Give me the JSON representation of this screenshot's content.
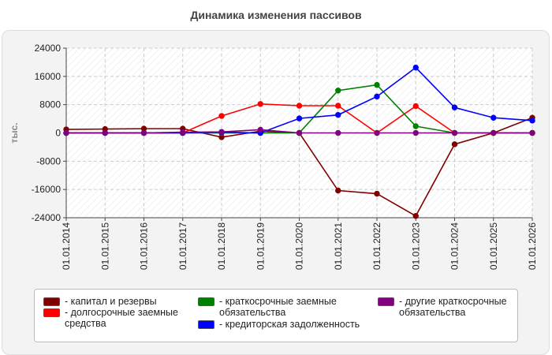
{
  "chart_data": {
    "type": "line",
    "title": "Динамика изменения пассивов",
    "ylabel": "тыс.",
    "xlabel": "",
    "ylim": [
      -24000,
      24000
    ],
    "yticks": [
      24000,
      16000,
      8000,
      0,
      -8000,
      -16000,
      -24000
    ],
    "grid": true,
    "legend_position": "bottom",
    "categories": [
      "01.01.2014",
      "01.01.2015",
      "01.01.2016",
      "01.01.2017",
      "01.01.2018",
      "01.01.2019",
      "01.01.2020",
      "01.01.2021",
      "01.01.2022",
      "01.01.2023",
      "01.01.2024",
      "01.01.2025",
      "01.01.2026"
    ],
    "series": [
      {
        "name": "- капитал и резервы",
        "color": "#800000",
        "values": [
          1000,
          1100,
          1200,
          1200,
          -1200,
          500,
          0,
          -16300,
          -17200,
          -23500,
          -3200,
          0,
          4300
        ]
      },
      {
        "name": "- долгосрочные заемные средства",
        "color": "#ff0000",
        "values": [
          0,
          0,
          0,
          0,
          4800,
          8200,
          7700,
          7700,
          0,
          7600,
          0,
          0,
          0
        ]
      },
      {
        "name": "- краткосрочные заемные обязательства",
        "color": "#008000",
        "values": [
          0,
          0,
          0,
          0,
          0,
          0,
          0,
          12000,
          13600,
          1900,
          0,
          0,
          0
        ]
      },
      {
        "name": "- кредиторская задолженность",
        "color": "#0000ff",
        "values": [
          0,
          0,
          0,
          0,
          200,
          0,
          4100,
          5100,
          10300,
          18500,
          7200,
          4300,
          3500
        ]
      },
      {
        "name": "- другие краткосрочные обязательства",
        "color": "#800080",
        "values": [
          0,
          0,
          0,
          200,
          300,
          900,
          0,
          0,
          0,
          0,
          0,
          0,
          0
        ]
      }
    ]
  }
}
